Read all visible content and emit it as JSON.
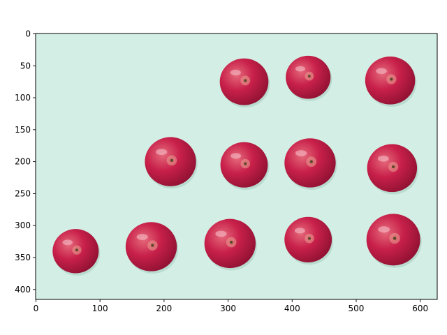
{
  "plot": {
    "x_axis": {
      "range": [
        -0.5,
        626.5
      ],
      "ticks": [
        0,
        100,
        200,
        300,
        400,
        500,
        600
      ],
      "tick_labels": [
        "0",
        "100",
        "200",
        "300",
        "400",
        "500",
        "600"
      ]
    },
    "y_axis": {
      "range": [
        -0.5,
        415.5
      ],
      "inverted": true,
      "ticks": [
        0,
        50,
        100,
        150,
        200,
        250,
        300,
        350,
        400
      ],
      "tick_labels": [
        "0",
        "50",
        "100",
        "150",
        "200",
        "250",
        "300",
        "350",
        "400"
      ]
    },
    "image": {
      "background_color": "#d3efe5",
      "object_color": "#c11e45",
      "highlight_color": "#e9747f",
      "subject": "red apples on mint background",
      "apples": [
        {
          "x": 325,
          "y": 75,
          "r": 38
        },
        {
          "x": 425,
          "y": 68,
          "r": 35
        },
        {
          "x": 553,
          "y": 73,
          "r": 39
        },
        {
          "x": 210,
          "y": 200,
          "r": 40
        },
        {
          "x": 325,
          "y": 205,
          "r": 37
        },
        {
          "x": 428,
          "y": 202,
          "r": 40
        },
        {
          "x": 556,
          "y": 210,
          "r": 39
        },
        {
          "x": 62,
          "y": 340,
          "r": 36
        },
        {
          "x": 180,
          "y": 333,
          "r": 40
        },
        {
          "x": 303,
          "y": 328,
          "r": 40
        },
        {
          "x": 425,
          "y": 322,
          "r": 37
        },
        {
          "x": 558,
          "y": 322,
          "r": 42
        }
      ]
    }
  }
}
